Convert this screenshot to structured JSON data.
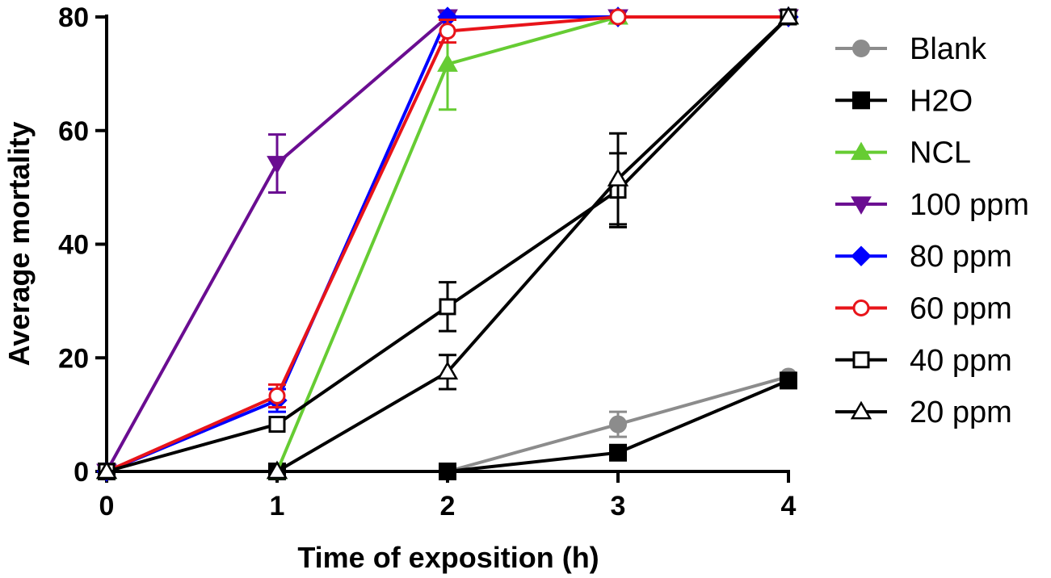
{
  "chart_data": {
    "type": "line",
    "xlabel": "Time of exposition (h)",
    "ylabel": "Average mortality",
    "x": [
      0,
      1,
      2,
      3,
      4
    ],
    "xlim": [
      0,
      4
    ],
    "ylim": [
      0,
      80
    ],
    "xticks": [
      "0",
      "1",
      "2",
      "3",
      "4"
    ],
    "yticks": [
      "0",
      "20",
      "40",
      "60",
      "80"
    ],
    "grid": false,
    "legend_position": "right",
    "series": [
      {
        "name": "Blank",
        "color": "#8c8c8c",
        "marker": "circle",
        "values": [
          0,
          0,
          0,
          8.3,
          16.7
        ],
        "errors": [
          0,
          0,
          0,
          2.2,
          0
        ]
      },
      {
        "name": "H2O",
        "color": "#000000",
        "marker": "square",
        "values": [
          0,
          0,
          0,
          3.3,
          16
        ],
        "errors": [
          0,
          0,
          0,
          0,
          0
        ]
      },
      {
        "name": "NCL",
        "color": "#66cc33",
        "marker": "triangle-up",
        "values": [
          0,
          0,
          71.7,
          80,
          80
        ],
        "errors": [
          0,
          0,
          8,
          0,
          0
        ]
      },
      {
        "name": "100 ppm",
        "color": "#6a0d91",
        "marker": "triangle-down",
        "values": [
          0,
          54.2,
          80,
          80,
          80
        ],
        "errors": [
          0,
          5.1,
          0,
          0,
          0
        ]
      },
      {
        "name": "80 ppm",
        "color": "#0000ff",
        "marker": "diamond",
        "values": [
          0,
          12.5,
          80,
          80,
          80
        ],
        "errors": [
          0,
          2,
          0,
          0,
          0
        ]
      },
      {
        "name": "60 ppm",
        "color": "#e8141a",
        "marker": "circle-open",
        "values": [
          0,
          13.3,
          77.5,
          80,
          80
        ],
        "errors": [
          0,
          2,
          2,
          0,
          0
        ]
      },
      {
        "name": "40 ppm",
        "color": "#000000",
        "marker": "square-open",
        "values": [
          0,
          8.3,
          29,
          49.5,
          80
        ],
        "errors": [
          0,
          0,
          4.3,
          6.5,
          0
        ]
      },
      {
        "name": "20 ppm",
        "color": "#000000",
        "marker": "triangle-open",
        "values": [
          0,
          0,
          17.5,
          51.5,
          80
        ],
        "errors": [
          0,
          0,
          3,
          8,
          0
        ]
      }
    ]
  }
}
